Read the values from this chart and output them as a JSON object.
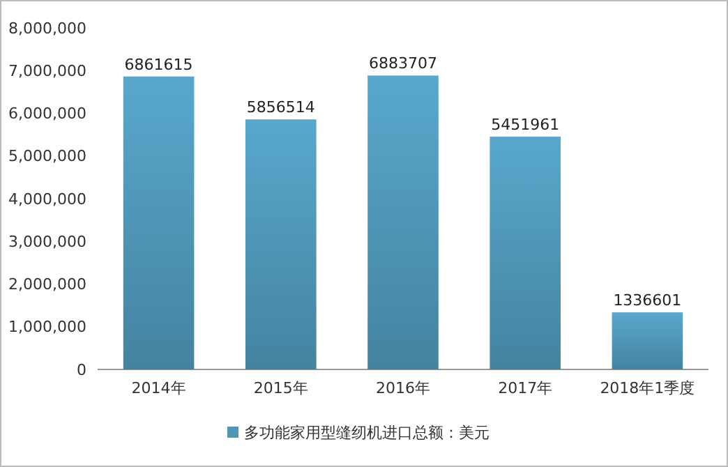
{
  "chart_data": {
    "type": "bar",
    "categories": [
      "2014年",
      "2015年",
      "2016年",
      "2017年",
      "2018年1季度"
    ],
    "series": [
      {
        "name": "多功能家用型缝纫机进口总额：美元",
        "color": "#4f97b8",
        "values": [
          6861615,
          5856514,
          6883707,
          5451961,
          1336601
        ]
      }
    ],
    "ylim": [
      0,
      8000000
    ],
    "yticks": [
      {
        "value": 0,
        "label": "0"
      },
      {
        "value": 1000000,
        "label": "1,000,000"
      },
      {
        "value": 2000000,
        "label": "2,000,000"
      },
      {
        "value": 3000000,
        "label": "3,000,000"
      },
      {
        "value": 4000000,
        "label": "4,000,000"
      },
      {
        "value": 5000000,
        "label": "5,000,000"
      },
      {
        "value": 6000000,
        "label": "6,000,000"
      },
      {
        "value": 7000000,
        "label": "7,000,000"
      },
      {
        "value": 8000000,
        "label": "8,000,000"
      }
    ],
    "data_labels": true,
    "legend": "bottom",
    "grid": false
  }
}
